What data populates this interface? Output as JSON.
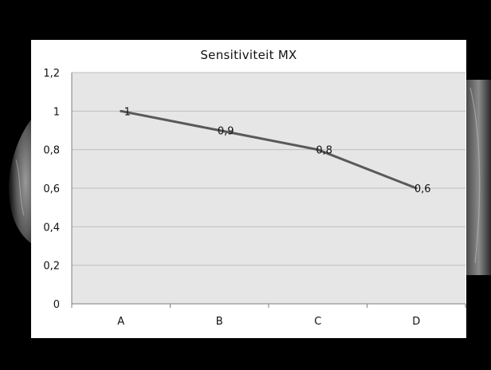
{
  "chart_data": {
    "type": "line",
    "title": "Sensitiviteit MX",
    "xlabel": "",
    "ylabel": "",
    "categories": [
      "A",
      "B",
      "C",
      "D"
    ],
    "series": [
      {
        "values": [
          1,
          0.9,
          0.8,
          0.6
        ],
        "data_labels": [
          "1",
          "0,9",
          "0,8",
          "0,6"
        ]
      }
    ],
    "ylim": [
      0,
      1.2
    ],
    "yticks": [
      0,
      0.2,
      0.4,
      0.6,
      0.8,
      1,
      1.2
    ],
    "ytick_labels": [
      "0",
      "0,2",
      "0,4",
      "0,6",
      "0,8",
      "1",
      "1,2"
    ],
    "grid": true,
    "legend": "none",
    "colors": {
      "line": "#595959",
      "plot_background": "#e6e6e6",
      "chart_background": "#ffffff",
      "gridline": "#bfbfbf",
      "page_background": "#000000"
    }
  }
}
